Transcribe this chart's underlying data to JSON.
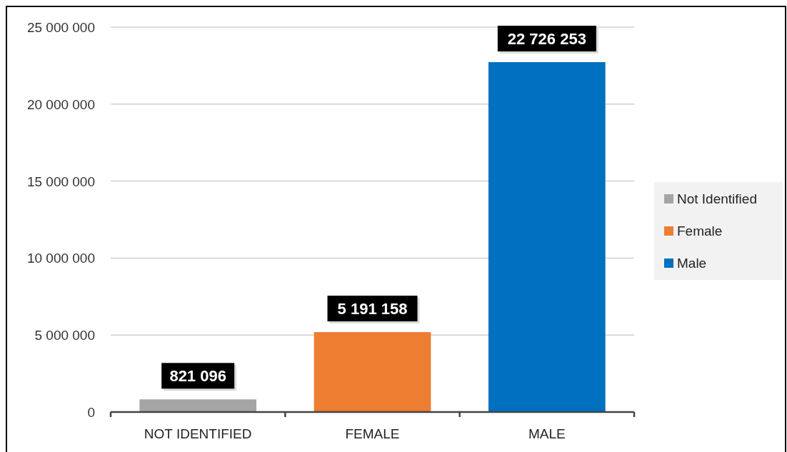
{
  "chart_data": {
    "type": "bar",
    "categories": [
      "NOT IDENTIFIED",
      "FEMALE",
      "MALE"
    ],
    "series": [
      {
        "name": "Not Identified",
        "color": "#a5a5a5",
        "values": [
          821096,
          null,
          null
        ],
        "value_labels": [
          "821 096",
          null,
          null
        ]
      },
      {
        "name": "Female",
        "color": "#ed7d31",
        "values": [
          null,
          5191158,
          null
        ],
        "value_labels": [
          null,
          "5 191 158",
          null
        ]
      },
      {
        "name": "Male",
        "color": "#0070c0",
        "values": [
          null,
          null,
          22726253
        ],
        "value_labels": [
          null,
          null,
          "22 726 253"
        ]
      }
    ],
    "ylim": [
      0,
      25000000
    ],
    "yticks": [
      {
        "value": 0,
        "label": "0"
      },
      {
        "value": 5000000,
        "label": "5 000 000"
      },
      {
        "value": 10000000,
        "label": "10 000 000"
      },
      {
        "value": 15000000,
        "label": "15 000 000"
      },
      {
        "value": 20000000,
        "label": "20 000 000"
      },
      {
        "value": 25000000,
        "label": "25 000 000"
      }
    ],
    "grid": "y",
    "legend": "right"
  }
}
